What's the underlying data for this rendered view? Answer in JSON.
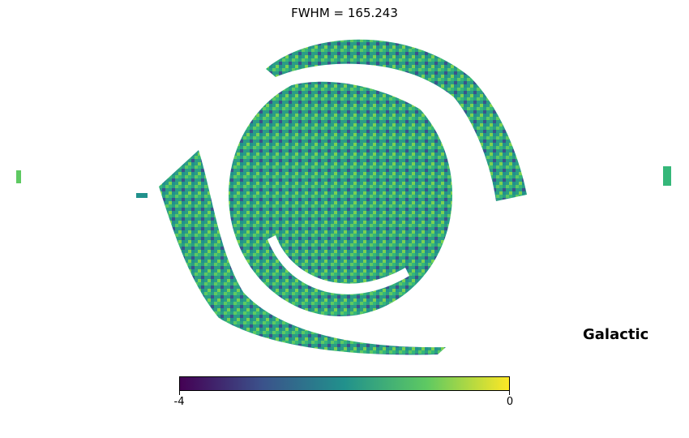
{
  "title": "FWHM = 165.243",
  "coord_label": "Galactic",
  "colormap": [
    "#440154",
    "#3b528b",
    "#21918c",
    "#5ec962",
    "#fde725"
  ],
  "colorbar": {
    "min_label": "-4",
    "max_label": "0",
    "min": -4,
    "max": 0
  },
  "projection": "mollweide"
}
